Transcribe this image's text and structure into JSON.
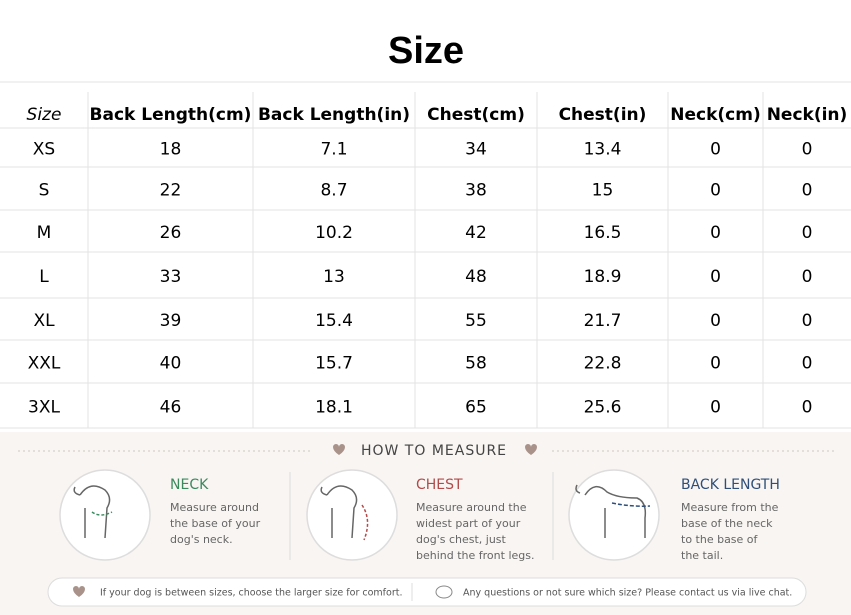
{
  "title": "Size",
  "table": {
    "header": [
      "Size",
      "Back Length(cm)",
      "Back Length(in)",
      "Chest(cm)",
      "Chest(in)",
      "Neck(cm)",
      "Neck(in)"
    ],
    "rows": [
      [
        "XS",
        18,
        7.1,
        34,
        13.4,
        0,
        0
      ],
      [
        "S",
        22,
        8.7,
        38,
        15,
        0,
        0
      ],
      [
        "M",
        26,
        10.2,
        42,
        16.5,
        0,
        0
      ],
      [
        "L",
        33,
        13,
        48,
        18.9,
        0,
        0
      ],
      [
        "XL",
        39,
        15.4,
        55,
        21.7,
        0,
        0
      ],
      [
        "XXL",
        40,
        15.7,
        58,
        22.8,
        0,
        0
      ],
      [
        "3XL",
        46,
        18.1,
        65,
        25.6,
        0,
        0
      ]
    ]
  },
  "measure": {
    "heading": "HOW TO MEASURE",
    "items": [
      {
        "label": "NECK",
        "lines": [
          "Measure around",
          "the base of your",
          "dog's neck."
        ]
      },
      {
        "label": "CHEST",
        "lines": [
          "Measure around the",
          "widest part of your",
          "dog's chest, just",
          "behind the front legs."
        ]
      },
      {
        "label": "BACK LENGTH",
        "lines": [
          "Measure from the",
          "base of the neck",
          "to the base of",
          "the tail."
        ]
      }
    ]
  },
  "footer": {
    "tip": "If your dog is between sizes, choose the larger size for comfort.",
    "contact": "Any questions or not sure which size? Please contact us via live chat."
  }
}
